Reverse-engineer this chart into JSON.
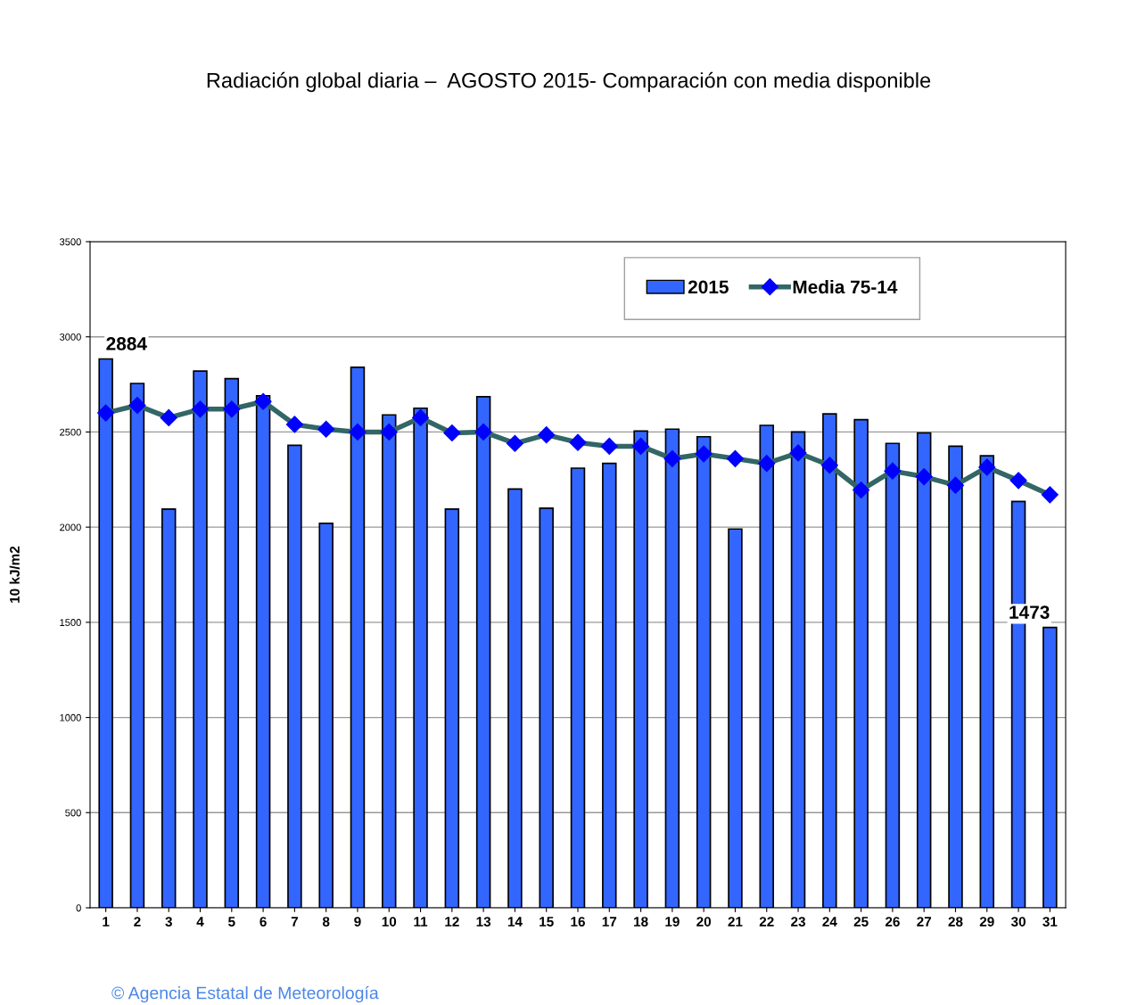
{
  "chart_data": {
    "type": "bar",
    "title": "Radiación global diaria –  AGOSTO 2015- Comparación con media disponible",
    "ylabel": "10 kJ/m2",
    "categories": [
      "1",
      "2",
      "3",
      "4",
      "5",
      "6",
      "7",
      "8",
      "9",
      "10",
      "11",
      "12",
      "13",
      "14",
      "15",
      "16",
      "17",
      "18",
      "19",
      "20",
      "21",
      "22",
      "23",
      "24",
      "25",
      "26",
      "27",
      "28",
      "29",
      "30",
      "31"
    ],
    "series": [
      {
        "name": "2015",
        "color": "#3366ff",
        "values": [
          2884,
          2755,
          2095,
          2820,
          2780,
          2690,
          2430,
          2020,
          2840,
          2590,
          2625,
          2095,
          2685,
          2200,
          2100,
          2310,
          2335,
          2505,
          2515,
          2475,
          1990,
          2535,
          2500,
          2595,
          2565,
          2440,
          2495,
          2425,
          2375,
          2135,
          1473
        ],
        "value_labels": [
          "2884",
          null,
          null,
          null,
          null,
          null,
          null,
          null,
          null,
          null,
          null,
          null,
          null,
          null,
          null,
          null,
          null,
          null,
          null,
          null,
          null,
          null,
          null,
          null,
          null,
          null,
          null,
          null,
          null,
          null,
          "1473"
        ]
      },
      {
        "name": "Media 75-14",
        "type": "line",
        "color": "#336666",
        "marker": "diamond",
        "values": [
          2600,
          2640,
          2575,
          2620,
          2620,
          2660,
          2540,
          2515,
          2500,
          2500,
          2575,
          2495,
          2500,
          2440,
          2485,
          2445,
          2425,
          2425,
          2360,
          2385,
          2360,
          2335,
          2390,
          2325,
          2195,
          2295,
          2265,
          2220,
          2315,
          2245,
          2170
        ]
      }
    ],
    "ylim": [
      0,
      3500
    ],
    "yticks": [
      0,
      500,
      1000,
      1500,
      2000,
      2500,
      3000,
      3500
    ],
    "grid": "y",
    "legend": "top right",
    "annotations": [
      "© Agencia Estatal de Meteorología"
    ]
  }
}
